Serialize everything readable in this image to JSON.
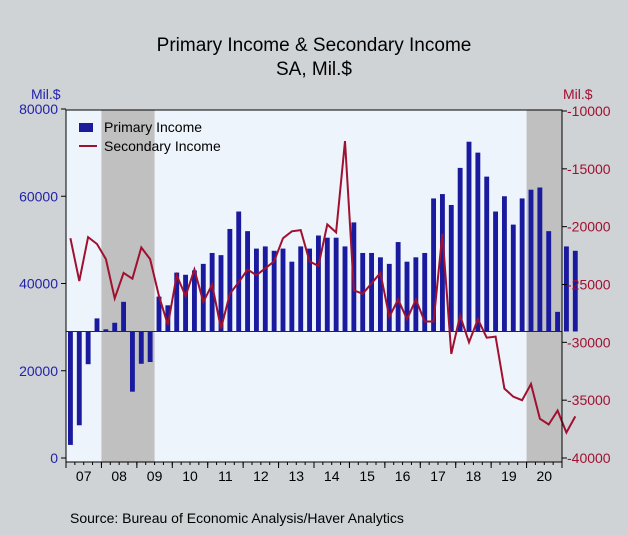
{
  "colors": {
    "background": "#cfd3d6",
    "plot_bg": "#eef4fb",
    "recession": "#c0c0c0",
    "primary": "#1a1a9e",
    "secondary": "#a01030",
    "left_axis_text": "#2222aa",
    "right_axis_text": "#a01030"
  },
  "chart_data": {
    "type": "bar",
    "title": "Primary Income & Secondary Income",
    "subtitle": "SA, Mil.$",
    "source": "Source:  Bureau of Economic Analysis/Haver Analytics",
    "left_unit": "Mil.$",
    "right_unit": "Mil.$",
    "left_ylim": [
      0,
      80000
    ],
    "left_ticks": [
      "80000",
      "60000",
      "40000",
      "20000",
      "0"
    ],
    "left_tick_values": [
      80000,
      60000,
      40000,
      20000,
      0
    ],
    "right_ylim": [
      -40000,
      -10000
    ],
    "right_ticks": [
      "-10000",
      "-15000",
      "-20000",
      "-25000",
      "-30000",
      "-35000",
      "-40000"
    ],
    "right_tick_values": [
      -10000,
      -15000,
      -20000,
      -25000,
      -30000,
      -35000,
      -40000
    ],
    "bar_baseline_left": 29000,
    "x_start_quarter": "2007Q1",
    "x_end_quarter": "2020Q4",
    "year_labels": [
      "07",
      "08",
      "09",
      "10",
      "11",
      "12",
      "13",
      "14",
      "15",
      "16",
      "17",
      "18",
      "19",
      "20"
    ],
    "recessions": [
      {
        "start": "2008Q1",
        "end": "2009Q2"
      },
      {
        "start": "2020Q1",
        "end": "2020Q4"
      }
    ],
    "grid": false,
    "legend_position": "top-left",
    "series": [
      {
        "name": "Primary Income",
        "type": "bar",
        "axis": "left",
        "values": [
          3000,
          7500,
          21500,
          32000,
          29500,
          31000,
          35800,
          15200,
          21600,
          22000,
          37000,
          35000,
          42500,
          42000,
          43000,
          44500,
          47000,
          46500,
          52500,
          56500,
          52000,
          48000,
          48500,
          47500,
          48000,
          45000,
          48500,
          48000,
          51000,
          50500,
          50500,
          48500,
          54000,
          47000,
          47000,
          46000,
          44500,
          49500,
          45000,
          46000,
          47000,
          59500,
          60500,
          58000,
          66500,
          72500,
          70000,
          64500,
          56500,
          60000,
          53500,
          59500,
          61500,
          62000,
          52000,
          33500,
          48500,
          47500
        ]
      },
      {
        "name": "Secondary Income",
        "type": "line",
        "axis": "right",
        "values": [
          -21000,
          -24700,
          -20900,
          -21500,
          -22800,
          -26200,
          -24000,
          -24500,
          -21800,
          -22800,
          -26000,
          -28500,
          -24200,
          -26000,
          -23700,
          -26500,
          -25000,
          -28800,
          -25800,
          -24800,
          -23700,
          -24200,
          -23600,
          -23000,
          -21000,
          -20400,
          -20300,
          -23000,
          -23400,
          -19800,
          -20500,
          -12600,
          -25500,
          -25800,
          -24900,
          -24000,
          -27800,
          -26300,
          -28000,
          -26300,
          -28200,
          -28200,
          -20600,
          -31000,
          -27700,
          -30000,
          -28000,
          -29600,
          -29500,
          -34000,
          -34700,
          -35000,
          -33600,
          -36600,
          -37100,
          -35900,
          -37800,
          -36400
        ]
      }
    ]
  }
}
